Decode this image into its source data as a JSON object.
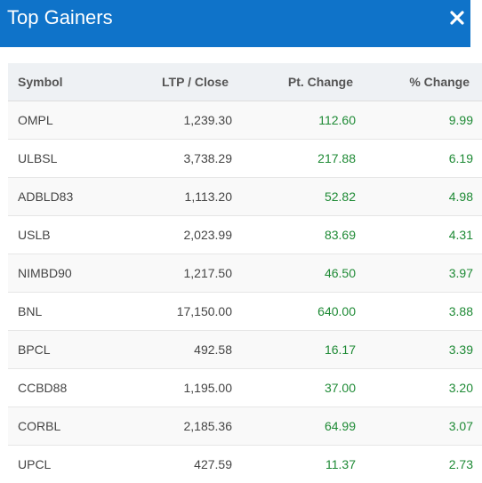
{
  "dialog": {
    "title": "Top Gainers",
    "close_icon": "close-icon"
  },
  "colors": {
    "header_bg": "#0f73c9",
    "positive": "#1e8a35",
    "header_row_bg": "#eef1f4"
  },
  "table": {
    "headers": {
      "symbol": "Symbol",
      "ltp": "LTP / Close",
      "pt_change": "Pt. Change",
      "pct_change": "% Change"
    },
    "rows": [
      {
        "symbol": "OMPL",
        "ltp": "1,239.30",
        "pt_change": "112.60",
        "pct_change": "9.99"
      },
      {
        "symbol": "ULBSL",
        "ltp": "3,738.29",
        "pt_change": "217.88",
        "pct_change": "6.19"
      },
      {
        "symbol": "ADBLD83",
        "ltp": "1,113.20",
        "pt_change": "52.82",
        "pct_change": "4.98"
      },
      {
        "symbol": "USLB",
        "ltp": "2,023.99",
        "pt_change": "83.69",
        "pct_change": "4.31"
      },
      {
        "symbol": "NIMBD90",
        "ltp": "1,217.50",
        "pt_change": "46.50",
        "pct_change": "3.97"
      },
      {
        "symbol": "BNL",
        "ltp": "17,150.00",
        "pt_change": "640.00",
        "pct_change": "3.88"
      },
      {
        "symbol": "BPCL",
        "ltp": "492.58",
        "pt_change": "16.17",
        "pct_change": "3.39"
      },
      {
        "symbol": "CCBD88",
        "ltp": "1,195.00",
        "pt_change": "37.00",
        "pct_change": "3.20"
      },
      {
        "symbol": "CORBL",
        "ltp": "2,185.36",
        "pt_change": "64.99",
        "pct_change": "3.07"
      },
      {
        "symbol": "UPCL",
        "ltp": "427.59",
        "pt_change": "11.37",
        "pct_change": "2.73"
      }
    ]
  }
}
